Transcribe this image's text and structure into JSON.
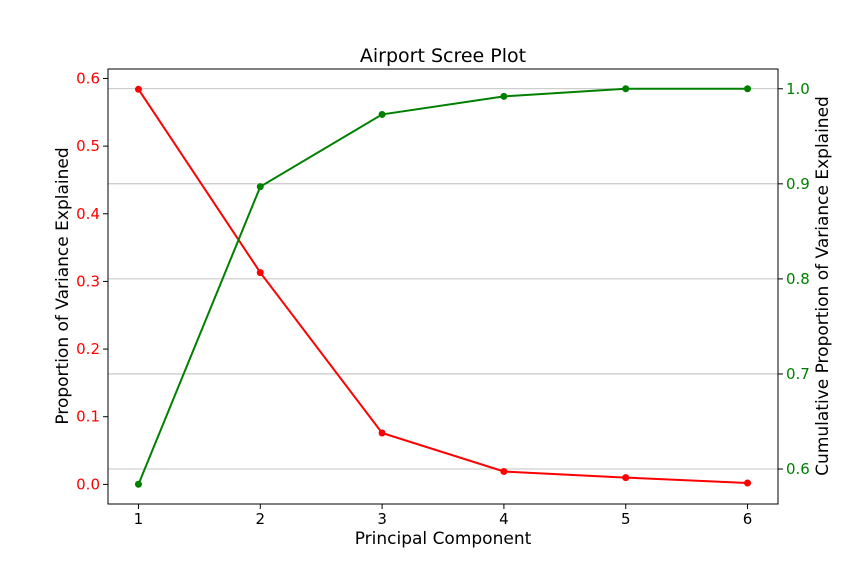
{
  "chart_data": {
    "type": "line",
    "title": "Airport Scree Plot",
    "xlabel": "Principal Component",
    "ylabel_left": "Proportion of Variance Explained",
    "ylabel_right": "Cumulative Proportion of Variance Explained",
    "x": [
      1,
      2,
      3,
      4,
      5,
      6
    ],
    "xlim": [
      0.75,
      6.25
    ],
    "xticks": [
      "1",
      "2",
      "3",
      "4",
      "5",
      "6"
    ],
    "grid": "horizontal, right axis",
    "series": [
      {
        "axis": "left",
        "color": "#ff0000",
        "values": [
          0.584,
          0.313,
          0.076,
          0.019,
          0.01,
          0.002
        ]
      },
      {
        "axis": "right",
        "color": "#008000",
        "values": [
          0.584,
          0.897,
          0.973,
          0.992,
          1.0,
          1.0
        ]
      }
    ],
    "ylim_left": [
      -0.029,
      0.614
    ],
    "yticks_left": [
      "0.0",
      "0.1",
      "0.2",
      "0.3",
      "0.4",
      "0.5",
      "0.6"
    ],
    "ylim_right": [
      0.5632,
      1.0208
    ],
    "yticks_right": [
      "0.6",
      "0.7",
      "0.8",
      "0.9",
      "1.0"
    ],
    "left_tick_color": "#ff0000",
    "right_tick_color": "#008000"
  }
}
